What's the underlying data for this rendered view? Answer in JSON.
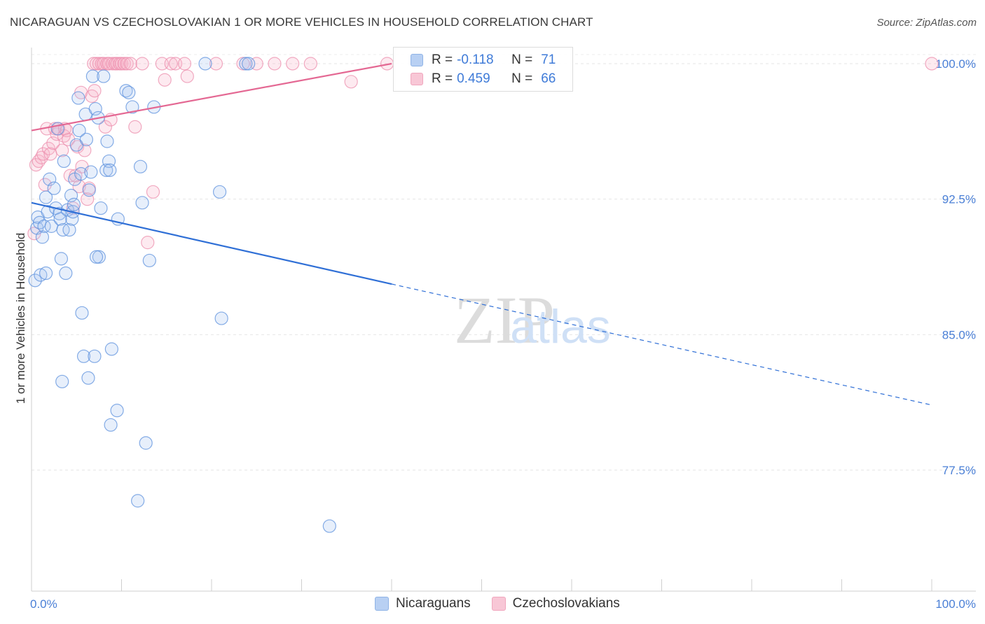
{
  "header": {
    "title": "NICARAGUAN VS CZECHOSLOVAKIAN 1 OR MORE VEHICLES IN HOUSEHOLD CORRELATION CHART",
    "source": "Source: ZipAtlas.com"
  },
  "watermark": {
    "zip": "ZIP",
    "atlas": "atlas"
  },
  "legend": {
    "rows": [
      {
        "r_label": "R =",
        "r_value": "-0.118",
        "n_label": "N =",
        "n_value": "71"
      },
      {
        "r_label": "R =",
        "r_value": "0.459",
        "n_label": "N =",
        "n_value": "66"
      }
    ]
  },
  "bottom_legend": {
    "series1": "Nicaraguans",
    "series2": "Czechoslovakians"
  },
  "chart_data": {
    "type": "scatter",
    "title": "NICARAGUAN VS CZECHOSLOVAKIAN 1 OR MORE VEHICLES IN HOUSEHOLD CORRELATION CHART",
    "xlabel": "",
    "ylabel": "1 or more Vehicles in Household",
    "xlim": [
      0,
      100
    ],
    "ylim": [
      70.8,
      101.2
    ],
    "x_tick_labels": [
      "0.0%",
      "100.0%"
    ],
    "y_ticks": [
      100.0,
      92.5,
      85.0,
      77.5
    ],
    "y_tick_labels": [
      "100.0%",
      "92.5%",
      "85.0%",
      "77.5%"
    ],
    "colors": {
      "blue": "#6f9fe3",
      "blue_line": "#2f6fd6",
      "pink": "#f08aab",
      "pink_line": "#e46893",
      "axis_text": "#4a7fd6"
    },
    "series": [
      {
        "name": "Nicaraguans",
        "color": "#6f9fe3",
        "R": -0.118,
        "N": 71,
        "trend": {
          "x0": 0,
          "y0": 92.3,
          "x1": 40,
          "y1": 87.8,
          "dash_to_x": 100,
          "dash_to_y": 81.1
        },
        "points": [
          [
            0.4,
            88.0
          ],
          [
            0.6,
            90.9
          ],
          [
            0.7,
            91.5
          ],
          [
            0.9,
            91.2
          ],
          [
            1.0,
            88.3
          ],
          [
            1.2,
            90.4
          ],
          [
            1.4,
            91.0
          ],
          [
            1.6,
            92.6
          ],
          [
            1.8,
            91.8
          ],
          [
            2.0,
            93.6
          ],
          [
            2.2,
            91.0
          ],
          [
            2.5,
            93.1
          ],
          [
            2.7,
            92.0
          ],
          [
            2.9,
            96.4
          ],
          [
            3.1,
            91.7
          ],
          [
            3.2,
            91.4
          ],
          [
            3.3,
            89.2
          ],
          [
            3.5,
            90.8
          ],
          [
            3.6,
            94.6
          ],
          [
            3.8,
            88.4
          ],
          [
            4.0,
            91.9
          ],
          [
            4.2,
            90.8
          ],
          [
            4.4,
            92.7
          ],
          [
            4.5,
            91.4
          ],
          [
            4.6,
            91.8
          ],
          [
            4.7,
            92.2
          ],
          [
            4.8,
            93.6
          ],
          [
            5.0,
            95.5
          ],
          [
            5.2,
            98.1
          ],
          [
            5.3,
            96.3
          ],
          [
            5.5,
            93.9
          ],
          [
            5.6,
            86.2
          ],
          [
            5.8,
            83.8
          ],
          [
            6.0,
            97.2
          ],
          [
            6.1,
            95.8
          ],
          [
            6.3,
            82.6
          ],
          [
            6.4,
            93.0
          ],
          [
            6.6,
            94.0
          ],
          [
            6.8,
            99.3
          ],
          [
            7.0,
            83.8
          ],
          [
            7.1,
            97.5
          ],
          [
            7.4,
            97.0
          ],
          [
            7.5,
            89.3
          ],
          [
            7.7,
            92.0
          ],
          [
            8.0,
            99.3
          ],
          [
            8.3,
            94.1
          ],
          [
            8.4,
            95.7
          ],
          [
            8.6,
            94.6
          ],
          [
            8.7,
            94.1
          ],
          [
            8.8,
            80.0
          ],
          [
            8.9,
            84.2
          ],
          [
            9.5,
            80.8
          ],
          [
            9.6,
            91.4
          ],
          [
            10.5,
            98.5
          ],
          [
            10.8,
            98.4
          ],
          [
            11.2,
            97.6
          ],
          [
            11.8,
            75.8
          ],
          [
            12.1,
            94.3
          ],
          [
            12.3,
            92.3
          ],
          [
            12.7,
            79.0
          ],
          [
            13.1,
            89.1
          ],
          [
            13.6,
            97.6
          ],
          [
            19.3,
            100.0
          ],
          [
            20.9,
            92.9
          ],
          [
            21.1,
            85.9
          ],
          [
            23.8,
            100.0
          ],
          [
            24.1,
            100.0
          ],
          [
            33.1,
            74.4
          ],
          [
            3.4,
            82.4
          ],
          [
            7.2,
            89.3
          ],
          [
            1.6,
            88.4
          ]
        ]
      },
      {
        "name": "Czechoslovakians",
        "color": "#f08aab",
        "R": 0.459,
        "N": 66,
        "trend": {
          "x0": 0,
          "y0": 96.3,
          "x1": 40,
          "y1": 100.0
        },
        "points": [
          [
            0.3,
            90.6
          ],
          [
            0.5,
            94.4
          ],
          [
            0.8,
            94.6
          ],
          [
            1.1,
            94.8
          ],
          [
            1.3,
            95.0
          ],
          [
            1.5,
            93.3
          ],
          [
            1.7,
            96.4
          ],
          [
            1.9,
            95.3
          ],
          [
            2.1,
            95.0
          ],
          [
            2.4,
            95.6
          ],
          [
            2.6,
            96.4
          ],
          [
            2.8,
            96.1
          ],
          [
            3.0,
            96.4
          ],
          [
            3.4,
            95.2
          ],
          [
            3.6,
            96.0
          ],
          [
            3.7,
            96.4
          ],
          [
            3.9,
            96.3
          ],
          [
            4.1,
            95.8
          ],
          [
            4.3,
            93.8
          ],
          [
            4.6,
            92.0
          ],
          [
            4.9,
            93.8
          ],
          [
            5.1,
            95.4
          ],
          [
            5.3,
            93.2
          ],
          [
            5.5,
            98.4
          ],
          [
            5.6,
            94.3
          ],
          [
            5.9,
            95.2
          ],
          [
            6.2,
            92.5
          ],
          [
            6.4,
            93.1
          ],
          [
            6.7,
            98.2
          ],
          [
            6.9,
            100.0
          ],
          [
            7.0,
            98.5
          ],
          [
            7.2,
            100.0
          ],
          [
            7.5,
            100.0
          ],
          [
            7.8,
            100.0
          ],
          [
            8.0,
            100.0
          ],
          [
            8.2,
            96.5
          ],
          [
            8.4,
            100.0
          ],
          [
            8.6,
            100.0
          ],
          [
            8.8,
            96.9
          ],
          [
            9.0,
            100.0
          ],
          [
            9.3,
            100.0
          ],
          [
            9.5,
            100.0
          ],
          [
            9.8,
            100.0
          ],
          [
            10.0,
            100.0
          ],
          [
            10.3,
            100.0
          ],
          [
            10.6,
            100.0
          ],
          [
            11.0,
            100.0
          ],
          [
            11.5,
            96.5
          ],
          [
            12.3,
            100.0
          ],
          [
            12.9,
            90.1
          ],
          [
            13.5,
            92.9
          ],
          [
            14.5,
            100.0
          ],
          [
            14.8,
            99.1
          ],
          [
            15.5,
            100.0
          ],
          [
            16.0,
            100.0
          ],
          [
            17.0,
            100.0
          ],
          [
            17.3,
            99.3
          ],
          [
            20.5,
            100.0
          ],
          [
            23.5,
            100.0
          ],
          [
            25.0,
            100.0
          ],
          [
            27.0,
            100.0
          ],
          [
            29.0,
            100.0
          ],
          [
            31.0,
            100.0
          ],
          [
            35.5,
            99.0
          ],
          [
            39.5,
            100.0
          ],
          [
            100.0,
            100.0
          ]
        ]
      }
    ]
  }
}
